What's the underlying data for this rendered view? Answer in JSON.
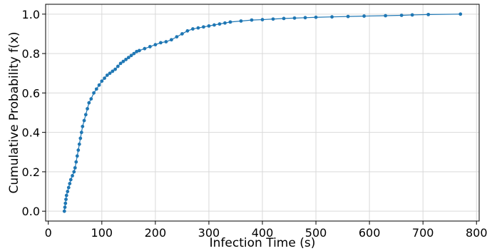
{
  "chart_data": {
    "type": "line",
    "title": "",
    "xlabel": "Infection Time (s)",
    "ylabel": "Cumulative Probability f(x)",
    "xlim": [
      -5,
      805
    ],
    "ylim": [
      -0.05,
      1.05
    ],
    "x_ticks": [
      0,
      100,
      200,
      300,
      400,
      500,
      600,
      700,
      800
    ],
    "y_ticks": [
      0.0,
      0.2,
      0.4,
      0.6,
      0.8,
      1.0
    ],
    "x_tick_labels": [
      "0",
      "100",
      "200",
      "300",
      "400",
      "500",
      "600",
      "700",
      "800"
    ],
    "y_tick_labels": [
      "0.0",
      "0.2",
      "0.4",
      "0.6",
      "0.8",
      "1.0"
    ],
    "grid": true,
    "series_color": "#1f77b4",
    "series": [
      {
        "marker": "dot",
        "points": [
          [
            30,
            0.0
          ],
          [
            31,
            0.02
          ],
          [
            32,
            0.04
          ],
          [
            33,
            0.06
          ],
          [
            34,
            0.08
          ],
          [
            36,
            0.1
          ],
          [
            38,
            0.12
          ],
          [
            40,
            0.14
          ],
          [
            42,
            0.16
          ],
          [
            45,
            0.18
          ],
          [
            48,
            0.2
          ],
          [
            50,
            0.22
          ],
          [
            52,
            0.25
          ],
          [
            54,
            0.28
          ],
          [
            56,
            0.31
          ],
          [
            58,
            0.34
          ],
          [
            60,
            0.37
          ],
          [
            62,
            0.4
          ],
          [
            64,
            0.43
          ],
          [
            67,
            0.46
          ],
          [
            70,
            0.49
          ],
          [
            73,
            0.52
          ],
          [
            76,
            0.55
          ],
          [
            80,
            0.57
          ],
          [
            85,
            0.6
          ],
          [
            90,
            0.62
          ],
          [
            95,
            0.64
          ],
          [
            100,
            0.66
          ],
          [
            105,
            0.675
          ],
          [
            110,
            0.69
          ],
          [
            115,
            0.7
          ],
          [
            120,
            0.71
          ],
          [
            125,
            0.72
          ],
          [
            130,
            0.735
          ],
          [
            135,
            0.75
          ],
          [
            140,
            0.76
          ],
          [
            145,
            0.77
          ],
          [
            150,
            0.78
          ],
          [
            155,
            0.79
          ],
          [
            160,
            0.8
          ],
          [
            165,
            0.81
          ],
          [
            170,
            0.815
          ],
          [
            180,
            0.825
          ],
          [
            190,
            0.835
          ],
          [
            200,
            0.845
          ],
          [
            210,
            0.855
          ],
          [
            220,
            0.86
          ],
          [
            230,
            0.87
          ],
          [
            240,
            0.885
          ],
          [
            250,
            0.9
          ],
          [
            260,
            0.915
          ],
          [
            270,
            0.925
          ],
          [
            280,
            0.93
          ],
          [
            290,
            0.935
          ],
          [
            300,
            0.94
          ],
          [
            310,
            0.945
          ],
          [
            320,
            0.95
          ],
          [
            330,
            0.955
          ],
          [
            340,
            0.96
          ],
          [
            360,
            0.965
          ],
          [
            380,
            0.97
          ],
          [
            400,
            0.972
          ],
          [
            420,
            0.975
          ],
          [
            440,
            0.978
          ],
          [
            460,
            0.98
          ],
          [
            480,
            0.982
          ],
          [
            500,
            0.984
          ],
          [
            530,
            0.986
          ],
          [
            560,
            0.988
          ],
          [
            590,
            0.99
          ],
          [
            630,
            0.992
          ],
          [
            660,
            0.994
          ],
          [
            680,
            0.996
          ],
          [
            710,
            0.998
          ],
          [
            770,
            1.0
          ]
        ]
      }
    ]
  }
}
